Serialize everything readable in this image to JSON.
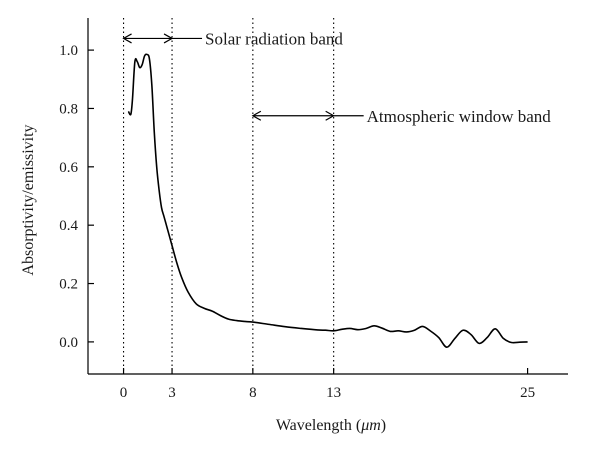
{
  "chart_data": {
    "type": "line",
    "title": "",
    "xlabel_text": "Wavelength (",
    "xlabel_unit": "μm",
    "xlabel_close": ")",
    "ylabel": "Absorptivity/emissivity",
    "xlim": [
      -2.2,
      27.5
    ],
    "ylim": [
      -0.11,
      1.11
    ],
    "x_ticks": [
      0,
      3,
      8,
      13,
      25
    ],
    "x_tick_labels": [
      "0",
      "3",
      "8",
      "13",
      "25"
    ],
    "y_ticks": [
      0.0,
      0.2,
      0.4,
      0.6,
      0.8,
      1.0
    ],
    "y_tick_labels": [
      "0.0",
      "0.2",
      "0.4",
      "0.6",
      "0.8",
      "1.0"
    ],
    "grid": false,
    "series": [
      {
        "color": "#000000",
        "x": [
          0.3,
          0.45,
          0.55,
          0.7,
          0.85,
          1.0,
          1.15,
          1.3,
          1.45,
          1.6,
          1.75,
          1.9,
          2.05,
          2.2,
          2.35,
          2.5,
          2.6,
          2.7,
          2.8,
          3.0,
          3.3,
          3.6,
          4.0,
          4.5,
          5.0,
          5.5,
          6.0,
          6.5,
          7.0,
          7.5,
          8.0,
          9.0,
          10.0,
          11.0,
          12.0,
          12.5,
          13.0,
          13.5,
          14.0,
          14.5,
          15.0,
          15.5,
          16.0,
          16.5,
          17.0,
          17.5,
          18.0,
          18.5,
          19.0,
          19.5,
          20.0,
          20.5,
          21.0,
          21.5,
          22.0,
          22.5,
          23.0,
          23.5,
          24.0,
          24.5,
          25.0
        ],
        "y": [
          0.79,
          0.78,
          0.83,
          0.96,
          0.96,
          0.94,
          0.95,
          0.98,
          0.985,
          0.97,
          0.88,
          0.72,
          0.6,
          0.52,
          0.46,
          0.43,
          0.41,
          0.39,
          0.37,
          0.33,
          0.27,
          0.22,
          0.17,
          0.13,
          0.115,
          0.105,
          0.09,
          0.078,
          0.073,
          0.07,
          0.068,
          0.06,
          0.052,
          0.046,
          0.041,
          0.04,
          0.038,
          0.043,
          0.046,
          0.042,
          0.046,
          0.055,
          0.047,
          0.036,
          0.038,
          0.034,
          0.04,
          0.053,
          0.037,
          0.015,
          -0.018,
          0.012,
          0.04,
          0.025,
          -0.005,
          0.015,
          0.045,
          0.012,
          -0.002,
          -0.001,
          0.0
        ]
      }
    ],
    "vertical_lines": [
      0,
      3,
      8,
      13
    ],
    "annotations": [
      {
        "text": "Solar radiation band",
        "x_from": 0,
        "x_to": 3,
        "y": 1.04
      },
      {
        "text": "Atmospheric window band",
        "x_from": 8,
        "x_to": 13,
        "y": 0.775
      }
    ]
  }
}
